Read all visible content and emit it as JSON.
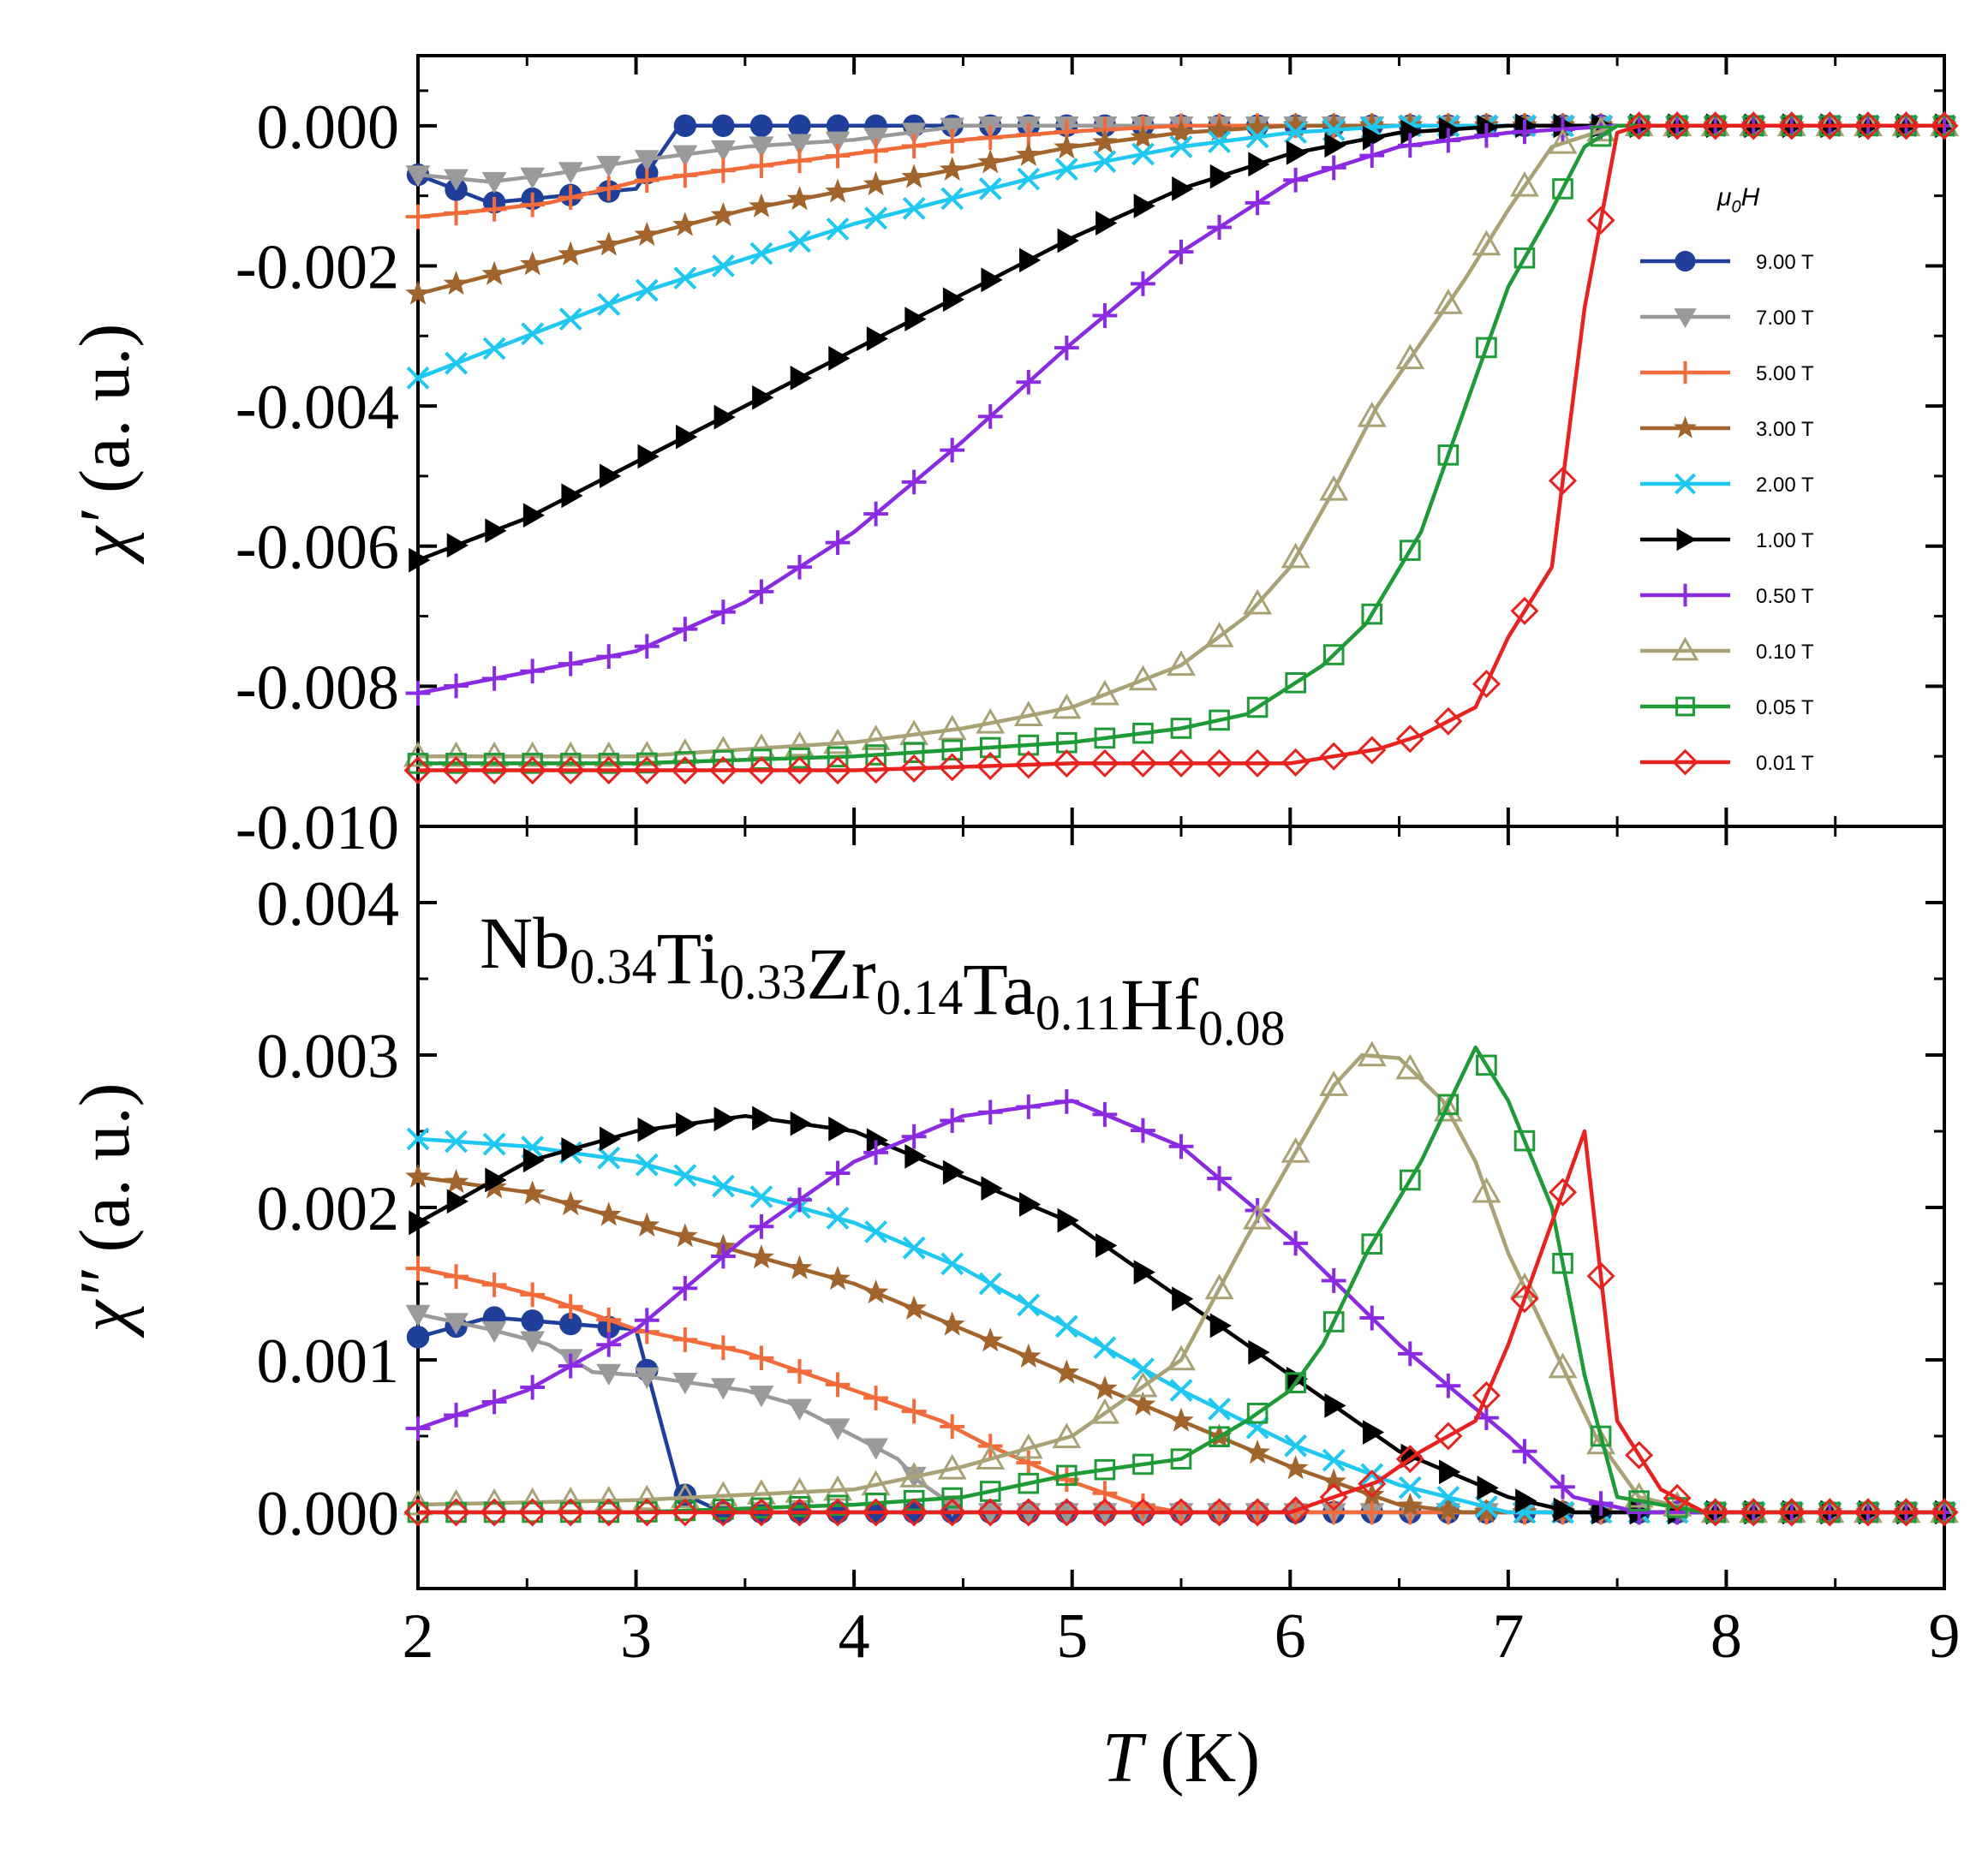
{
  "chart_data": {
    "type": "line",
    "compound": {
      "parts": [
        {
          "el": "Nb",
          "sub": "0.34"
        },
        {
          "el": "Ti",
          "sub": "0.33"
        },
        {
          "el": "Zr",
          "sub": "0.14"
        },
        {
          "el": "Ta",
          "sub": "0.11"
        },
        {
          "el": "Hf",
          "sub": "0.08"
        }
      ]
    },
    "xlabel": {
      "symbol": "T",
      "unit": "(K)"
    },
    "xlim": [
      2,
      9
    ],
    "xticks": [
      "2",
      "3",
      "4",
      "5",
      "6",
      "7",
      "8",
      "9"
    ],
    "legend": {
      "title_main": "μ",
      "title_sub": "0",
      "title_end": "H",
      "placement": "top-right"
    },
    "panels": [
      {
        "id": "top",
        "ylabel": {
          "symbol": "χ′",
          "unit": "(a. u.)"
        },
        "ylim": [
          -0.01,
          0.001
        ],
        "yticks": [
          {
            "value": 0.0,
            "label": "0.000"
          },
          {
            "value": -0.002,
            "label": "-0.002"
          },
          {
            "value": -0.004,
            "label": "-0.004"
          },
          {
            "value": -0.006,
            "label": "-0.006"
          },
          {
            "value": -0.008,
            "label": "-0.008"
          },
          {
            "value": -0.01,
            "label": "-0.010"
          }
        ]
      },
      {
        "id": "bottom",
        "ylabel": {
          "symbol": "χ″",
          "unit": "(a. u.)"
        },
        "ylim": [
          -0.0005,
          0.0045
        ],
        "yticks": [
          {
            "value": 0.0,
            "label": "0.000"
          },
          {
            "value": 0.001,
            "label": "0.001"
          },
          {
            "value": 0.002,
            "label": "0.002"
          },
          {
            "value": 0.003,
            "label": "0.003"
          },
          {
            "value": 0.004,
            "label": "0.004"
          }
        ]
      }
    ],
    "series": [
      {
        "name": "9.00 T",
        "color": "#1f3f9a",
        "marker": "circle",
        "top": [
          [
            2.0,
            -0.0007
          ],
          [
            2.33,
            -0.0011
          ],
          [
            3.0,
            -0.0009
          ],
          [
            3.2,
            0.0
          ],
          [
            4.0,
            0.0
          ],
          [
            9.0,
            0.0
          ]
        ],
        "bottom": [
          [
            2.0,
            0.00115
          ],
          [
            2.33,
            0.00128
          ],
          [
            3.0,
            0.0012
          ],
          [
            3.2,
            0.00013
          ],
          [
            3.4,
            0.0
          ],
          [
            9.0,
            0.0
          ]
        ]
      },
      {
        "name": "7.00 T",
        "color": "#9a9a9a",
        "marker": "triangle-down",
        "top": [
          [
            2.0,
            -0.0007
          ],
          [
            2.33,
            -0.0008
          ],
          [
            2.6,
            -0.0007
          ],
          [
            3.0,
            -0.0005
          ],
          [
            3.5,
            -0.0003
          ],
          [
            4.0,
            -0.0002
          ],
          [
            4.5,
            0.0
          ],
          [
            9.0,
            0.0
          ]
        ],
        "bottom": [
          [
            2.0,
            0.0013
          ],
          [
            2.33,
            0.0012
          ],
          [
            2.6,
            0.0011
          ],
          [
            2.8,
            0.00092
          ],
          [
            3.0,
            0.0009
          ],
          [
            3.5,
            0.0008
          ],
          [
            3.7,
            0.00072
          ],
          [
            4.0,
            0.0005
          ],
          [
            4.2,
            0.00035
          ],
          [
            4.3,
            0.0002
          ],
          [
            4.5,
            0.0
          ],
          [
            9.0,
            0.0
          ]
        ]
      },
      {
        "name": "5.00 T",
        "color": "#f26b3a",
        "marker": "plus",
        "top": [
          [
            2.0,
            -0.0013
          ],
          [
            2.33,
            -0.0012
          ],
          [
            2.6,
            -0.0011
          ],
          [
            3.0,
            -0.0008
          ],
          [
            3.5,
            -0.0006
          ],
          [
            4.0,
            -0.0004
          ],
          [
            4.5,
            -0.0002
          ],
          [
            5.0,
            -8e-05
          ],
          [
            5.5,
            0.0
          ],
          [
            9.0,
            0.0
          ]
        ],
        "bottom": [
          [
            2.0,
            0.0016
          ],
          [
            2.33,
            0.0015
          ],
          [
            2.6,
            0.0014
          ],
          [
            3.0,
            0.0012
          ],
          [
            3.5,
            0.00105
          ],
          [
            4.0,
            0.0008
          ],
          [
            4.4,
            0.0006
          ],
          [
            4.6,
            0.00045
          ],
          [
            5.0,
            0.0002
          ],
          [
            5.3,
            5e-05
          ],
          [
            5.5,
            0.0
          ],
          [
            9.0,
            0.0
          ]
        ]
      },
      {
        "name": "3.00 T",
        "color": "#a0642c",
        "marker": "star",
        "top": [
          [
            2.0,
            -0.0024
          ],
          [
            2.5,
            -0.002
          ],
          [
            3.0,
            -0.0016
          ],
          [
            3.5,
            -0.0012
          ],
          [
            4.0,
            -0.0009
          ],
          [
            4.5,
            -0.0006
          ],
          [
            5.0,
            -0.0003
          ],
          [
            5.5,
            -0.0001
          ],
          [
            6.0,
            0.0
          ],
          [
            9.0,
            0.0
          ]
        ],
        "bottom": [
          [
            2.0,
            0.0022
          ],
          [
            2.5,
            0.0021
          ],
          [
            3.0,
            0.0019
          ],
          [
            3.5,
            0.0017
          ],
          [
            4.0,
            0.0015
          ],
          [
            4.5,
            0.0012
          ],
          [
            5.0,
            0.0009
          ],
          [
            5.5,
            0.0006
          ],
          [
            6.0,
            0.0003
          ],
          [
            6.5,
            5e-05
          ],
          [
            6.8,
            0.0
          ],
          [
            9.0,
            0.0
          ]
        ]
      },
      {
        "name": "2.00 T",
        "color": "#1ec8f0",
        "marker": "x",
        "top": [
          [
            2.0,
            -0.0036
          ],
          [
            2.5,
            -0.003
          ],
          [
            3.0,
            -0.0024
          ],
          [
            3.5,
            -0.0019
          ],
          [
            4.0,
            -0.0014
          ],
          [
            4.5,
            -0.001
          ],
          [
            5.0,
            -0.0006
          ],
          [
            5.5,
            -0.0003
          ],
          [
            6.0,
            -0.0001
          ],
          [
            6.5,
            0.0
          ],
          [
            9.0,
            0.0
          ]
        ],
        "bottom": [
          [
            2.0,
            0.00245
          ],
          [
            2.5,
            0.0024
          ],
          [
            3.0,
            0.0023
          ],
          [
            3.5,
            0.0021
          ],
          [
            4.0,
            0.0019
          ],
          [
            4.5,
            0.0016
          ],
          [
            5.0,
            0.0012
          ],
          [
            5.5,
            0.0008
          ],
          [
            6.0,
            0.00045
          ],
          [
            6.5,
            0.00018
          ],
          [
            7.0,
            0.0
          ],
          [
            9.0,
            0.0
          ]
        ]
      },
      {
        "name": "1.00 T",
        "color": "#000000",
        "marker": "triangle-right",
        "top": [
          [
            2.0,
            -0.0062
          ],
          [
            2.5,
            -0.0056
          ],
          [
            3.0,
            -0.0048
          ],
          [
            3.5,
            -0.004
          ],
          [
            4.0,
            -0.0032
          ],
          [
            4.5,
            -0.0024
          ],
          [
            5.0,
            -0.0016
          ],
          [
            5.5,
            -0.0009
          ],
          [
            6.0,
            -0.0004
          ],
          [
            6.5,
            -0.0001
          ],
          [
            7.0,
            0.0
          ],
          [
            9.0,
            0.0
          ]
        ],
        "bottom": [
          [
            2.0,
            0.0019
          ],
          [
            2.5,
            0.0023
          ],
          [
            3.0,
            0.0025
          ],
          [
            3.5,
            0.0026
          ],
          [
            4.0,
            0.0025
          ],
          [
            4.5,
            0.0022
          ],
          [
            5.0,
            0.0019
          ],
          [
            5.5,
            0.0014
          ],
          [
            6.0,
            0.0009
          ],
          [
            6.5,
            0.0004
          ],
          [
            7.0,
            0.0001
          ],
          [
            7.3,
            0.0
          ],
          [
            9.0,
            0.0
          ]
        ]
      },
      {
        "name": "0.50 T",
        "color": "#8a2be2",
        "marker": "plus",
        "top": [
          [
            2.0,
            -0.0081
          ],
          [
            2.5,
            -0.0078
          ],
          [
            3.0,
            -0.0075
          ],
          [
            3.5,
            -0.0068
          ],
          [
            4.0,
            -0.0058
          ],
          [
            4.5,
            -0.0045
          ],
          [
            5.0,
            -0.0031
          ],
          [
            5.5,
            -0.0018
          ],
          [
            6.0,
            -0.0008
          ],
          [
            6.5,
            -0.0003
          ],
          [
            7.0,
            -0.0001
          ],
          [
            7.5,
            0.0
          ],
          [
            9.0,
            0.0
          ]
        ],
        "bottom": [
          [
            2.0,
            0.00055
          ],
          [
            2.5,
            0.0008
          ],
          [
            3.0,
            0.0012
          ],
          [
            3.5,
            0.0018
          ],
          [
            4.0,
            0.0023
          ],
          [
            4.5,
            0.0026
          ],
          [
            5.0,
            0.0027
          ],
          [
            5.5,
            0.0024
          ],
          [
            6.0,
            0.0018
          ],
          [
            6.5,
            0.0011
          ],
          [
            7.0,
            0.0005
          ],
          [
            7.3,
            0.0001
          ],
          [
            7.6,
            0.0
          ],
          [
            9.0,
            0.0
          ]
        ]
      },
      {
        "name": "0.10 T",
        "color": "#a8a276",
        "marker": "triangle-up",
        "top": [
          [
            2.0,
            -0.009
          ],
          [
            3.0,
            -0.009
          ],
          [
            4.0,
            -0.0088
          ],
          [
            4.5,
            -0.0086
          ],
          [
            5.0,
            -0.0083
          ],
          [
            5.5,
            -0.0077
          ],
          [
            5.8,
            -0.007
          ],
          [
            6.0,
            -0.0063
          ],
          [
            6.2,
            -0.0052
          ],
          [
            6.4,
            -0.004
          ],
          [
            6.6,
            -0.0031
          ],
          [
            6.8,
            -0.0022
          ],
          [
            7.0,
            -0.0012
          ],
          [
            7.2,
            -0.0003
          ],
          [
            7.5,
            0.0
          ],
          [
            9.0,
            0.0
          ]
        ],
        "bottom": [
          [
            2.0,
            5e-05
          ],
          [
            3.0,
            8e-05
          ],
          [
            4.0,
            0.00015
          ],
          [
            4.5,
            0.0003
          ],
          [
            5.0,
            0.0005
          ],
          [
            5.5,
            0.001
          ],
          [
            5.8,
            0.0018
          ],
          [
            6.0,
            0.0023
          ],
          [
            6.2,
            0.0028
          ],
          [
            6.33,
            0.003
          ],
          [
            6.5,
            0.00298
          ],
          [
            6.7,
            0.0027
          ],
          [
            6.85,
            0.0023
          ],
          [
            7.0,
            0.0017
          ],
          [
            7.2,
            0.0011
          ],
          [
            7.4,
            0.0005
          ],
          [
            7.6,
            0.0001
          ],
          [
            7.9,
            0.0
          ],
          [
            9.0,
            0.0
          ]
        ]
      },
      {
        "name": "0.05 T",
        "color": "#1e9a36",
        "marker": "square-open",
        "top": [
          [
            2.0,
            -0.0091
          ],
          [
            3.0,
            -0.0091
          ],
          [
            4.0,
            -0.009
          ],
          [
            4.5,
            -0.0089
          ],
          [
            5.0,
            -0.0088
          ],
          [
            5.5,
            -0.0086
          ],
          [
            5.8,
            -0.0084
          ],
          [
            6.0,
            -0.008
          ],
          [
            6.15,
            -0.0077
          ],
          [
            6.35,
            -0.0071
          ],
          [
            6.6,
            -0.0058
          ],
          [
            6.85,
            -0.0036
          ],
          [
            7.0,
            -0.0023
          ],
          [
            7.2,
            -0.0012
          ],
          [
            7.35,
            -0.0003
          ],
          [
            7.5,
            0.0
          ],
          [
            9.0,
            0.0
          ]
        ],
        "bottom": [
          [
            2.0,
            0.0
          ],
          [
            3.0,
            0.0
          ],
          [
            4.0,
            5e-05
          ],
          [
            4.5,
            0.0001
          ],
          [
            5.0,
            0.00025
          ],
          [
            5.5,
            0.00035
          ],
          [
            5.8,
            0.0006
          ],
          [
            6.0,
            0.0008
          ],
          [
            6.15,
            0.0011
          ],
          [
            6.35,
            0.0017
          ],
          [
            6.6,
            0.0023
          ],
          [
            6.85,
            0.00305
          ],
          [
            7.0,
            0.0027
          ],
          [
            7.2,
            0.002
          ],
          [
            7.35,
            0.0009
          ],
          [
            7.5,
            0.0001
          ],
          [
            7.9,
            0.0
          ],
          [
            9.0,
            0.0
          ]
        ]
      },
      {
        "name": "0.01 T",
        "color": "#e8221e",
        "marker": "diamond-open",
        "top": [
          [
            2.0,
            -0.0092
          ],
          [
            3.0,
            -0.0092
          ],
          [
            4.0,
            -0.0092
          ],
          [
            5.0,
            -0.0091
          ],
          [
            6.0,
            -0.0091
          ],
          [
            6.2,
            -0.009
          ],
          [
            6.4,
            -0.0089
          ],
          [
            6.6,
            -0.0087
          ],
          [
            6.85,
            -0.0083
          ],
          [
            7.0,
            -0.0073
          ],
          [
            7.2,
            -0.0063
          ],
          [
            7.35,
            -0.0026
          ],
          [
            7.5,
            -0.0001
          ],
          [
            7.6,
            0.0
          ],
          [
            9.0,
            0.0
          ]
        ],
        "bottom": [
          [
            2.0,
            0.0
          ],
          [
            3.0,
            0.0
          ],
          [
            4.0,
            0.0
          ],
          [
            5.0,
            0.0
          ],
          [
            6.0,
            0.0
          ],
          [
            6.2,
            0.0001
          ],
          [
            6.4,
            0.0002
          ],
          [
            6.6,
            0.0004
          ],
          [
            6.85,
            0.0006
          ],
          [
            7.0,
            0.0011
          ],
          [
            7.2,
            0.0019
          ],
          [
            7.35,
            0.0025
          ],
          [
            7.5,
            0.0006
          ],
          [
            7.7,
            0.00015
          ],
          [
            7.9,
            0.0
          ],
          [
            9.0,
            0.0
          ]
        ]
      }
    ]
  }
}
